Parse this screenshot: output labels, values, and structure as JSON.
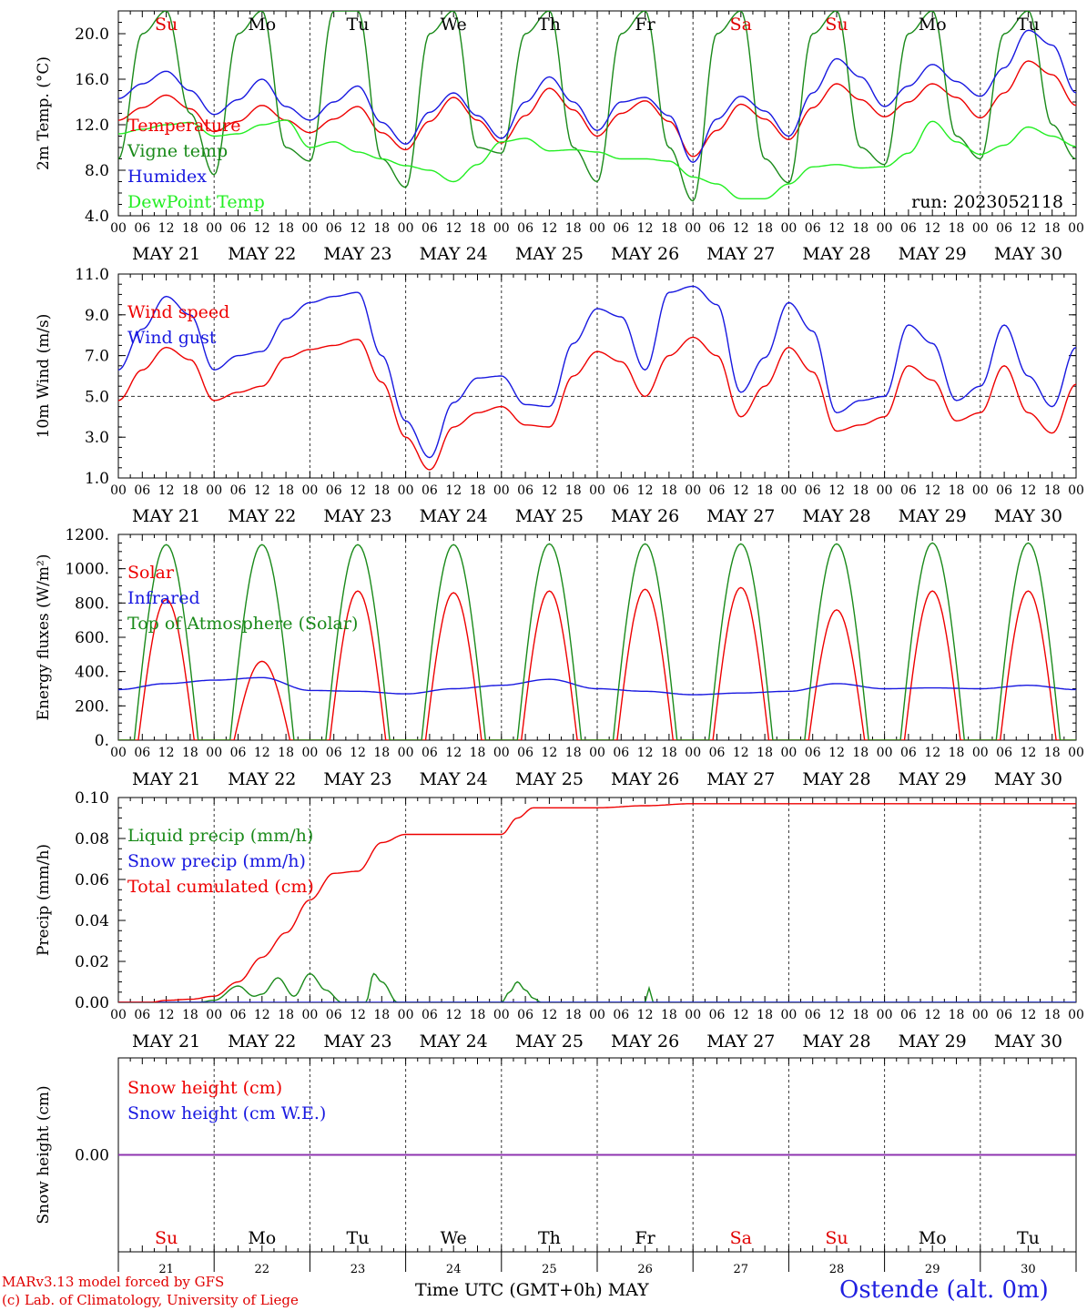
{
  "day_names": [
    "Su",
    "Mo",
    "Tu",
    "We",
    "Th",
    "Fr",
    "Sa",
    "Su",
    "Mo",
    "Tu"
  ],
  "day_colors": [
    "#e00000",
    "#000000",
    "#000000",
    "#000000",
    "#000000",
    "#000000",
    "#e00000",
    "#e00000",
    "#000000",
    "#000000"
  ],
  "date_labels": [
    "MAY 21",
    "MAY 22",
    "MAY 23",
    "MAY 24",
    "MAY 25",
    "MAY 26",
    "MAY 27",
    "MAY 28",
    "MAY 29",
    "MAY 30"
  ],
  "hour_labels": [
    "00",
    "06",
    "12",
    "18"
  ],
  "colors": {
    "red": "#ee0000",
    "dark_green": "#1a8a1a",
    "blue": "#1818e0",
    "light_green": "#22ee22",
    "purple": "#9030b0"
  },
  "footer": {
    "model_line": "MARv3.13 model forced by GFS",
    "copyright_line": "(c) Lab. of Climatology, University of Liege",
    "xlabel": "Time UTC (GMT+0h) MAY",
    "station": "Ostende (alt. 0m)"
  },
  "chart_data": [
    {
      "id": "temperature",
      "type": "line",
      "ylabel": "2m Temp. (°C)",
      "ylim": [
        4.0,
        22.0
      ],
      "yticks": [
        "4.0",
        "8.0",
        "12.0",
        "16.0",
        "20.0"
      ],
      "annotation": "run: 2023052118",
      "legend_placement": "top-left",
      "series": [
        {
          "name": "Temperature",
          "color": "#ee0000",
          "x": [
            0,
            6,
            12,
            18,
            24,
            30,
            36,
            42,
            48,
            54,
            60,
            66,
            72,
            78,
            84,
            90,
            96,
            102,
            108,
            114,
            120,
            126,
            132,
            138,
            144,
            150,
            156,
            162,
            168,
            174,
            180,
            186,
            192,
            198,
            204,
            210,
            216,
            222,
            228,
            234,
            240
          ],
          "y": [
            12.4,
            13.5,
            14.6,
            13.4,
            11.4,
            12.3,
            13.7,
            12.4,
            11.3,
            12.5,
            13.6,
            11.3,
            9.8,
            12.3,
            14.4,
            12.4,
            10.4,
            12.8,
            15.2,
            13.3,
            11.0,
            13.0,
            14.1,
            12.3,
            9.2,
            11.5,
            13.8,
            12.5,
            10.7,
            13.5,
            15.6,
            14.2,
            12.7,
            14.0,
            15.6,
            14.4,
            12.6,
            14.8,
            17.6,
            16.4,
            13.7
          ]
        },
        {
          "name": "Vigne temp",
          "color": "#1a8a1a",
          "x": [
            0,
            6,
            12,
            18,
            24,
            30,
            36,
            42,
            48,
            54,
            60,
            66,
            72,
            78,
            84,
            90,
            96,
            102,
            108,
            114,
            120,
            126,
            132,
            138,
            144,
            150,
            156,
            162,
            168,
            174,
            180,
            186,
            192,
            198,
            204,
            210,
            216,
            222,
            228,
            234,
            240
          ],
          "y": [
            9.0,
            20.0,
            22.0,
            13.0,
            7.6,
            20.0,
            22.0,
            10.0,
            8.8,
            22.0,
            22.0,
            9.0,
            6.5,
            20.0,
            22.0,
            10.0,
            9.5,
            20.0,
            22.0,
            10.0,
            7.0,
            20.0,
            22.0,
            10.0,
            5.3,
            20.0,
            22.0,
            9.0,
            6.9,
            20.0,
            22.0,
            10.0,
            8.5,
            20.0,
            22.0,
            11.0,
            9.0,
            20.0,
            22.0,
            12.0,
            9.0
          ]
        },
        {
          "name": "Humidex",
          "color": "#1818e0",
          "x": [
            0,
            6,
            12,
            18,
            24,
            30,
            36,
            42,
            48,
            54,
            60,
            66,
            72,
            78,
            84,
            90,
            96,
            102,
            108,
            114,
            120,
            126,
            132,
            138,
            144,
            150,
            156,
            162,
            168,
            174,
            180,
            186,
            192,
            198,
            204,
            210,
            216,
            222,
            228,
            234,
            240
          ],
          "y": [
            14.3,
            15.6,
            16.7,
            15.0,
            12.9,
            14.2,
            16.0,
            13.6,
            12.4,
            14.0,
            15.4,
            12.2,
            10.3,
            13.1,
            14.8,
            12.8,
            10.8,
            14.0,
            16.2,
            14.0,
            11.5,
            14.0,
            14.4,
            12.8,
            8.7,
            12.5,
            14.5,
            13.2,
            11.0,
            14.8,
            17.8,
            16.2,
            13.6,
            15.4,
            17.3,
            15.8,
            14.5,
            17.0,
            20.3,
            19.0,
            14.8
          ]
        },
        {
          "name": "DewPoint Temp",
          "color": "#22ee22",
          "x": [
            0,
            6,
            12,
            18,
            24,
            30,
            36,
            42,
            48,
            54,
            60,
            66,
            72,
            78,
            84,
            90,
            96,
            102,
            108,
            114,
            120,
            126,
            132,
            138,
            144,
            150,
            156,
            162,
            168,
            174,
            180,
            186,
            192,
            198,
            204,
            210,
            216,
            222,
            228,
            234,
            240
          ],
          "y": [
            11.2,
            11.6,
            12.0,
            12.2,
            11.0,
            11.2,
            12.0,
            12.4,
            10.0,
            10.5,
            9.6,
            9.0,
            8.4,
            8.0,
            7.0,
            8.5,
            10.5,
            10.8,
            9.7,
            9.8,
            9.6,
            9.0,
            9.0,
            8.8,
            7.4,
            6.8,
            5.5,
            5.5,
            6.8,
            8.3,
            8.5,
            8.2,
            8.3,
            9.5,
            12.3,
            10.5,
            9.4,
            10.2,
            11.8,
            11.0,
            10.1
          ]
        }
      ]
    },
    {
      "id": "wind",
      "type": "line",
      "ylabel": "10m Wind (m/s)",
      "ylim": [
        1.0,
        11.0
      ],
      "yticks": [
        "1.0",
        "3.0",
        "5.0",
        "7.0",
        "9.0",
        "11.0"
      ],
      "reference_line": 5.0,
      "legend_placement": "top-left",
      "series": [
        {
          "name": "Wind speed",
          "color": "#ee0000",
          "x": [
            0,
            6,
            12,
            18,
            24,
            30,
            36,
            42,
            48,
            54,
            60,
            66,
            72,
            78,
            84,
            90,
            96,
            102,
            108,
            114,
            120,
            126,
            132,
            138,
            144,
            150,
            156,
            162,
            168,
            174,
            180,
            186,
            192,
            198,
            204,
            210,
            216,
            222,
            228,
            234,
            240
          ],
          "y": [
            4.8,
            6.3,
            7.4,
            6.8,
            4.8,
            5.2,
            5.5,
            6.9,
            7.3,
            7.5,
            7.8,
            5.7,
            3.0,
            1.4,
            3.5,
            4.2,
            4.5,
            3.6,
            3.5,
            6.0,
            7.2,
            6.7,
            5.0,
            7.0,
            7.9,
            7.0,
            4.0,
            5.5,
            7.4,
            6.2,
            3.3,
            3.6,
            4.0,
            6.5,
            5.8,
            3.8,
            4.2,
            6.5,
            4.2,
            3.2,
            5.6
          ]
        },
        {
          "name": "Wind gust",
          "color": "#1818e0",
          "x": [
            0,
            6,
            12,
            18,
            24,
            30,
            36,
            42,
            48,
            54,
            60,
            66,
            72,
            78,
            84,
            90,
            96,
            102,
            108,
            114,
            120,
            126,
            132,
            138,
            144,
            150,
            156,
            162,
            168,
            174,
            180,
            186,
            192,
            198,
            204,
            210,
            216,
            222,
            228,
            234,
            240
          ],
          "y": [
            6.3,
            8.3,
            9.9,
            9.0,
            6.3,
            7.0,
            7.2,
            8.8,
            9.6,
            9.9,
            10.1,
            7.0,
            3.8,
            2.0,
            4.7,
            5.9,
            6.0,
            4.6,
            4.5,
            7.6,
            9.3,
            8.9,
            6.3,
            10.1,
            10.4,
            9.5,
            5.2,
            6.9,
            9.6,
            8.2,
            4.2,
            4.8,
            5.0,
            8.5,
            7.6,
            4.8,
            5.5,
            8.5,
            6.0,
            4.5,
            7.4
          ]
        }
      ]
    },
    {
      "id": "energy",
      "type": "line",
      "ylabel": "Energy fluxes (W/m²)",
      "ylim": [
        0,
        1200
      ],
      "yticks": [
        "0.",
        "200.",
        "400.",
        "600.",
        "800.",
        "1000.",
        "1200."
      ],
      "legend_placement": "top-left",
      "series": [
        {
          "name": "Solar",
          "color": "#ee0000",
          "daily_peak": [
            820,
            460,
            870,
            860,
            870,
            880,
            890,
            760,
            870,
            870
          ]
        },
        {
          "name": "Infrared",
          "color": "#1818e0",
          "x": [
            0,
            12,
            24,
            36,
            48,
            60,
            72,
            84,
            96,
            108,
            120,
            132,
            144,
            156,
            168,
            180,
            192,
            204,
            216,
            228,
            240
          ],
          "y": [
            295,
            330,
            350,
            365,
            290,
            285,
            270,
            300,
            320,
            355,
            300,
            285,
            265,
            275,
            285,
            330,
            300,
            305,
            300,
            320,
            295
          ]
        },
        {
          "name": "Top of Atmosphere (Solar)",
          "color": "#1a8a1a",
          "daily_peak": [
            1140,
            1140,
            1140,
            1140,
            1145,
            1145,
            1145,
            1145,
            1150,
            1150
          ]
        }
      ]
    },
    {
      "id": "precip",
      "type": "line",
      "ylabel": "Precip (mm/h)",
      "ylim": [
        0.0,
        0.1
      ],
      "yticks": [
        "0.00",
        "0.02",
        "0.04",
        "0.06",
        "0.08",
        "0.10"
      ],
      "legend_placement": "top-left",
      "series": [
        {
          "name": "Liquid precip (mm/h)",
          "color": "#1a8a1a",
          "x": [
            0,
            20,
            24,
            30,
            34,
            36,
            40,
            44,
            48,
            52,
            56,
            60,
            62,
            64,
            66,
            70,
            72,
            96,
            98,
            100,
            102,
            104,
            106,
            108,
            120,
            132,
            133,
            134,
            136,
            240
          ],
          "y": [
            0,
            0,
            0.001,
            0.008,
            0.003,
            0.004,
            0.012,
            0.003,
            0.014,
            0.006,
            0,
            0,
            0,
            0.014,
            0.01,
            0,
            0,
            0,
            0.005,
            0.01,
            0.006,
            0.002,
            0,
            0,
            0,
            0,
            0.007,
            0,
            0,
            0
          ]
        },
        {
          "name": "Snow precip (mm/h)",
          "color": "#1818e0",
          "x": [
            0,
            240
          ],
          "y": [
            0,
            0
          ]
        },
        {
          "name": "Total cumulated (cm)",
          "color": "#ee0000",
          "x": [
            0,
            8,
            12,
            18,
            24,
            30,
            36,
            42,
            48,
            54,
            60,
            66,
            72,
            84,
            96,
            100,
            104,
            108,
            120,
            132,
            144,
            240
          ],
          "y": [
            0,
            0,
            0.001,
            0.0015,
            0.003,
            0.01,
            0.022,
            0.034,
            0.05,
            0.063,
            0.064,
            0.078,
            0.082,
            0.082,
            0.082,
            0.09,
            0.095,
            0.095,
            0.095,
            0.096,
            0.097,
            0.097
          ]
        }
      ]
    },
    {
      "id": "snow",
      "type": "line",
      "ylabel": "Snow height (cm)",
      "yticks": [
        "0.00"
      ],
      "legend_placement": "top-left",
      "series": [
        {
          "name": "Snow height (cm)",
          "color": "#ee0000",
          "x": [
            0,
            240
          ],
          "y": [
            0,
            0
          ]
        },
        {
          "name": "Snow height (cm W.E.)",
          "color": "#1818e0",
          "x": [
            0,
            240
          ],
          "y": [
            0,
            0
          ]
        }
      ],
      "day_numbers": [
        "21",
        "22",
        "23",
        "24",
        "25",
        "26",
        "27",
        "28",
        "29",
        "30"
      ]
    }
  ]
}
